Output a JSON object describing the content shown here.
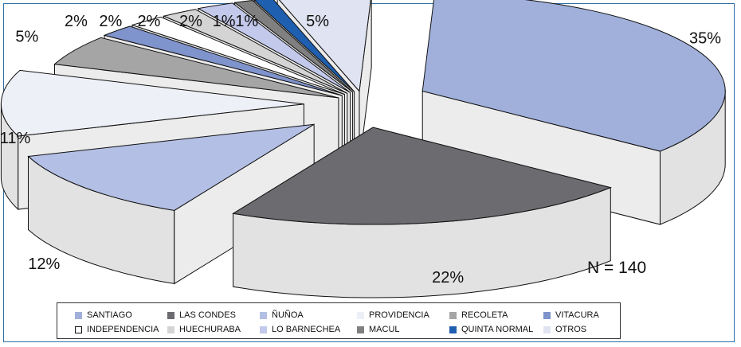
{
  "chart_data": {
    "type": "pie",
    "title": "",
    "annotation": "N = 140",
    "slices": [
      {
        "name": "SANTIAGO",
        "label": "35%",
        "value": 35,
        "color": "#a0b0db"
      },
      {
        "name": "LAS CONDES",
        "label": "22%",
        "value": 22,
        "color": "#6b6b70"
      },
      {
        "name": "ÑUÑOA",
        "label": "12%",
        "value": 12,
        "color": "#b3bfe4"
      },
      {
        "name": "PROVIDENCIA",
        "label": "11%",
        "value": 11,
        "color": "#eef0f8"
      },
      {
        "name": "RECOLETA",
        "label": "5%",
        "value": 5,
        "color": "#a5a5a5"
      },
      {
        "name": "VITACURA",
        "label": "2%",
        "value": 2,
        "color": "#7f93cc"
      },
      {
        "name": "INDEPENDENCIA",
        "label": "2%",
        "value": 2,
        "color": "#ffffff"
      },
      {
        "name": "HUECHURABA",
        "label": "2%",
        "value": 2,
        "color": "#d4d4d4"
      },
      {
        "name": "LO BARNECHEA",
        "label": "2%",
        "value": 2,
        "color": "#c2c9ea"
      },
      {
        "name": "MACUL",
        "label": "1%",
        "value": 1,
        "color": "#808080"
      },
      {
        "name": "QUINTA NORMAL",
        "label": "1%",
        "value": 1,
        "color": "#1f5fb0"
      },
      {
        "name": "OTROS",
        "label": "5%",
        "value": 5,
        "color": "#dfe3f2"
      }
    ],
    "legend_placement": "bottom"
  }
}
